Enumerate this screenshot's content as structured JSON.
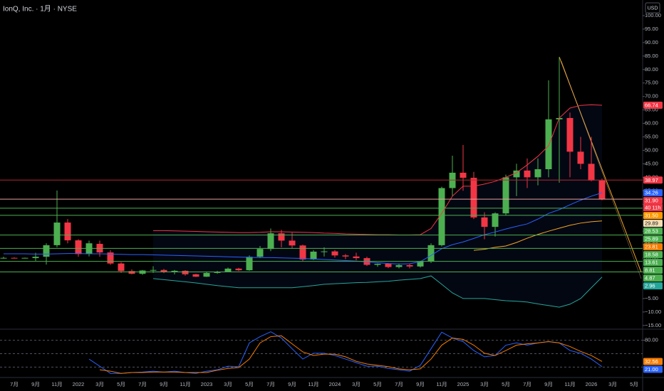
{
  "chart_data": [
    {
      "type": "candlestick",
      "title": "IonQ, Inc. · 1月 · NYSE",
      "currency": "USD",
      "up_color": "#4caf50",
      "down_color": "#f23645",
      "categories": [
        null,
        "7月",
        null,
        "9月",
        null,
        "11月",
        null,
        "2022",
        null,
        "3月",
        null,
        "5月",
        null,
        "7月",
        null,
        "9月",
        null,
        "11月",
        null,
        "2023",
        null,
        "3月",
        null,
        "5月",
        null,
        "7月",
        null,
        "9月",
        null,
        "11月",
        null,
        "2024",
        null,
        "3月",
        null,
        "5月",
        null,
        "7月",
        null,
        "9月",
        null,
        "11月",
        null,
        "2025",
        null,
        "3月",
        null,
        "5月",
        null,
        "7月",
        null,
        "9月",
        null,
        "11月",
        null,
        "2026",
        null,
        "3月",
        null,
        "5月"
      ],
      "open": [
        10,
        10.1,
        10,
        10,
        10.5,
        14.8,
        23.2,
        16.6,
        11.5,
        15.3,
        12.1,
        8,
        5.2,
        4.2,
        5.4,
        5.6,
        5,
        5.3,
        4,
        3.1,
        4.5,
        5,
        6.1,
        5.5,
        10.5,
        13.4,
        19.2,
        16.5,
        14.7,
        9.5,
        12.4,
        12.5,
        11,
        10.6,
        10,
        7.5,
        7.9,
        6.7,
        7.4,
        6.9,
        8.7,
        14.8,
        36,
        41.7,
        39.8,
        25.1,
        21.6,
        26.6,
        40,
        42.5,
        40,
        43,
        61.5,
        62,
        49.5,
        45,
        38.8,
        null,
        null,
        null
      ],
      "high": [
        10.5,
        10.3,
        10.2,
        12,
        15.5,
        35.1,
        24.5,
        17,
        16.5,
        16.5,
        13,
        8.5,
        5.8,
        5.6,
        7,
        6,
        5.6,
        5.5,
        4.2,
        4.8,
        5.3,
        6.5,
        6.4,
        11,
        14.5,
        21,
        20.5,
        19.5,
        15,
        13,
        14,
        13,
        11.5,
        12,
        10.5,
        8,
        8.2,
        8,
        7.8,
        9,
        15.5,
        36.5,
        48,
        52,
        42,
        27,
        27,
        41,
        45,
        47,
        47,
        76,
        84.6,
        64,
        55,
        55,
        39.5,
        null,
        null,
        null
      ],
      "low": [
        9.8,
        9.9,
        9.9,
        9,
        7.6,
        14,
        15.5,
        10.5,
        10.6,
        10.5,
        7.5,
        4.5,
        4,
        3.8,
        4.5,
        4.4,
        4,
        3.5,
        3,
        3,
        4.2,
        4.8,
        5.2,
        5.3,
        10,
        12.6,
        14,
        13.7,
        8.9,
        9.3,
        10.6,
        10.2,
        9.6,
        9.2,
        7.1,
        6.8,
        6.3,
        6.2,
        6.2,
        6.5,
        8.2,
        14.3,
        33,
        35,
        24.5,
        17,
        18,
        26,
        33,
        36,
        37,
        40,
        38,
        40,
        43,
        38.5,
        31.5,
        null,
        null,
        null
      ],
      "close": [
        10.1,
        10,
        10.1,
        10.5,
        14.8,
        23.2,
        16.6,
        11.5,
        15.5,
        12.1,
        8,
        5.2,
        4.2,
        5.4,
        5.6,
        5,
        5.3,
        4,
        3.1,
        4.5,
        5,
        6.1,
        5.5,
        10.5,
        13.4,
        19.2,
        16.5,
        14.7,
        9.5,
        12.4,
        12.5,
        11,
        10.6,
        10,
        7.5,
        7.9,
        6.7,
        7.4,
        6.9,
        8.7,
        14.8,
        36,
        41.7,
        39.8,
        25.1,
        21.6,
        26.6,
        40,
        42.5,
        40,
        43,
        61.5,
        62,
        49.5,
        45,
        38.8,
        31.9,
        null,
        null,
        null
      ],
      "series": [
        {
          "color": "#f23645",
          "values": [
            null,
            null,
            null,
            null,
            null,
            null,
            null,
            null,
            null,
            null,
            null,
            null,
            null,
            null,
            20.2,
            20.2,
            20.1,
            20,
            19.9,
            19.8,
            19.7,
            19.6,
            19.5,
            19.5,
            19.6,
            19.8,
            19.8,
            19.7,
            19.6,
            19.5,
            19.3,
            19.2,
            19,
            18.9,
            18.8,
            18.7,
            18.7,
            18.6,
            18.6,
            18.7,
            21,
            26.6,
            33,
            36.7,
            36.7,
            37.5,
            38.5,
            40,
            41.7,
            44.6,
            47.8,
            51.7,
            62,
            65.7,
            66.7,
            66.9,
            66.74,
            null,
            null,
            null
          ]
        },
        {
          "color": "#2962ff",
          "values": [
            11.6,
            11.6,
            11.6,
            11.5,
            11.5,
            11.6,
            11.7,
            11.7,
            11.6,
            11.6,
            11.5,
            11.4,
            11.3,
            11.3,
            11.2,
            11.1,
            11,
            10.9,
            10.8,
            10.7,
            10.6,
            10.5,
            10.4,
            10.3,
            10.2,
            10.2,
            10.1,
            10,
            9.9,
            9.7,
            9.5,
            9.3,
            9.1,
            8.9,
            8.6,
            8.3,
            8,
            7.8,
            7.9,
            8.7,
            11,
            13.5,
            15,
            16,
            17.3,
            18.7,
            19.7,
            20.8,
            21.8,
            22.7,
            24.5,
            26.6,
            28,
            29.8,
            31.5,
            33,
            34.26,
            null,
            null,
            null
          ]
        },
        {
          "color": "#26a69a",
          "values": [
            null,
            null,
            null,
            null,
            null,
            null,
            null,
            null,
            null,
            null,
            null,
            null,
            null,
            null,
            2.4,
            2,
            1.6,
            1.2,
            0.8,
            0.3,
            -0.2,
            -0.6,
            -1,
            -1,
            -1,
            -1,
            -1,
            -1,
            -0.6,
            -0.2,
            0.3,
            0.5,
            0.7,
            0.9,
            1,
            1.2,
            1.4,
            1.8,
            2.1,
            2.4,
            3.4,
            0.3,
            -2.9,
            -5,
            -5,
            -5,
            -5.4,
            -5.8,
            -6,
            -6.3,
            -7,
            -7.6,
            -8.2,
            -7.1,
            -5,
            -1,
            2.96,
            null,
            null,
            null
          ]
        },
        {
          "color": "#f5a623",
          "values": [
            null,
            null,
            null,
            null,
            null,
            null,
            null,
            null,
            null,
            null,
            null,
            null,
            null,
            null,
            null,
            null,
            null,
            null,
            null,
            null,
            null,
            null,
            null,
            null,
            null,
            null,
            null,
            null,
            null,
            null,
            null,
            null,
            null,
            null,
            null,
            null,
            null,
            null,
            null,
            null,
            null,
            null,
            null,
            null,
            12.9,
            13.3,
            14,
            14.5,
            15.8,
            17.4,
            18.8,
            20,
            21.1,
            22.2,
            23,
            23.5,
            23.81,
            null,
            null,
            null
          ]
        }
      ],
      "ylim": [
        -16.1,
        105.8
      ],
      "yticks": [
        {
          "value": 100,
          "label": "100.00"
        },
        {
          "value": 95,
          "label": "95.00"
        },
        {
          "value": 90,
          "label": "90.00"
        },
        {
          "value": 85,
          "label": "85.00"
        },
        {
          "value": 80,
          "label": "80.00"
        },
        {
          "value": 75,
          "label": "75.00"
        },
        {
          "value": 70,
          "label": "70.00"
        },
        {
          "value": 65,
          "label": "65.00"
        },
        {
          "value": 60,
          "label": "60.00"
        },
        {
          "value": 55,
          "label": "55.00"
        },
        {
          "value": 50,
          "label": "50.00"
        },
        {
          "value": 45,
          "label": "45.00"
        },
        {
          "value": 40,
          "label": "40.00"
        },
        {
          "value": 35,
          "label": "35.00"
        },
        {
          "value": 30,
          "label": "30.00"
        },
        {
          "value": 25,
          "label": "25.00"
        },
        {
          "value": 20,
          "label": "20.00"
        },
        {
          "value": 15,
          "label": "15.00"
        },
        {
          "value": 10,
          "label": "10.00"
        },
        {
          "value": 5,
          "label": "5.00"
        },
        {
          "value": 0,
          "label": "0.00"
        },
        {
          "value": -5,
          "label": "−5.00"
        },
        {
          "value": -10,
          "label": "−10.00"
        },
        {
          "value": -15,
          "label": "−15.00"
        }
      ],
      "price_labels": [
        {
          "value": 66.74,
          "label": "66.74",
          "color": "#f23645"
        },
        {
          "value": 38.97,
          "label": "38.97",
          "color": "#f23645",
          "line": "#b22833"
        },
        {
          "value": 34.26,
          "label": "34.26",
          "color": "#2962ff"
        },
        {
          "value": 31.9,
          "label": "31.90",
          "color": "#f23645",
          "line": "#e8a0a0",
          "countdown": "40 11h"
        },
        {
          "value": 31.5,
          "label": "31.50",
          "color": "#ff9800"
        },
        {
          "value": 29.89,
          "label": "29.89",
          "color": "#f5deb3"
        },
        {
          "value": 28.53,
          "label": "28.53",
          "color": "#4caf50",
          "line": "#4caf50"
        },
        {
          "value": 25.89,
          "label": "25.89",
          "color": "#4caf50",
          "line": "#4caf50"
        },
        {
          "value": 23.81,
          "label": "23.81",
          "color": "#f57c00"
        },
        {
          "value": 18.58,
          "label": "18.58",
          "color": "#4caf50",
          "line": "#4caf50"
        },
        {
          "value": 13.61,
          "label": "13.61",
          "color": "#4caf50",
          "line": "#4caf50"
        },
        {
          "value": 8.81,
          "label": "8.81",
          "color": "#4caf50",
          "line": "#4caf50"
        },
        {
          "value": 4.87,
          "label": "4.87",
          "color": "#4caf50",
          "line": "#4caf50"
        },
        {
          "value": 2.96,
          "label": "2.96",
          "color": "#26a69a"
        }
      ]
    },
    {
      "type": "line",
      "series": [
        {
          "color": "#2962ff",
          "values": [
            null,
            null,
            null,
            null,
            null,
            null,
            null,
            null,
            37.9,
            22,
            6,
            6,
            8,
            9,
            11,
            9,
            11,
            8,
            6,
            11,
            14,
            22,
            21,
            74,
            88,
            99,
            85,
            61,
            38,
            51,
            51,
            46,
            38,
            30,
            22,
            22,
            17,
            14,
            11,
            24,
            61,
            98,
            85,
            77,
            57,
            43,
            46,
            69,
            74,
            69,
            74,
            77,
            74,
            57,
            51,
            38,
            21,
            null,
            null,
            null
          ]
        },
        {
          "color": "#f57c00",
          "values": [
            null,
            null,
            null,
            null,
            null,
            null,
            null,
            null,
            null,
            14,
            11,
            6,
            8,
            8,
            9,
            9,
            9,
            8,
            8,
            8,
            13,
            17,
            19,
            38,
            74,
            88,
            90,
            72,
            54,
            46,
            49,
            49,
            43,
            33,
            27,
            24,
            21,
            16,
            14,
            16,
            38,
            69,
            85,
            82,
            69,
            51,
            46,
            57,
            69,
            72,
            74,
            77,
            74,
            66,
            55,
            46,
            32.56,
            null,
            null,
            null
          ]
        }
      ],
      "ylim": [
        0,
        100
      ],
      "yticks": [
        {
          "value": 80,
          "label": "80.00"
        }
      ],
      "levels": [
        80,
        50,
        20
      ],
      "price_labels": [
        {
          "value": 32.56,
          "label": "32.56",
          "color": "#f57c00"
        },
        {
          "value": 21,
          "label": "21.00",
          "color": "#2962ff"
        }
      ]
    }
  ]
}
